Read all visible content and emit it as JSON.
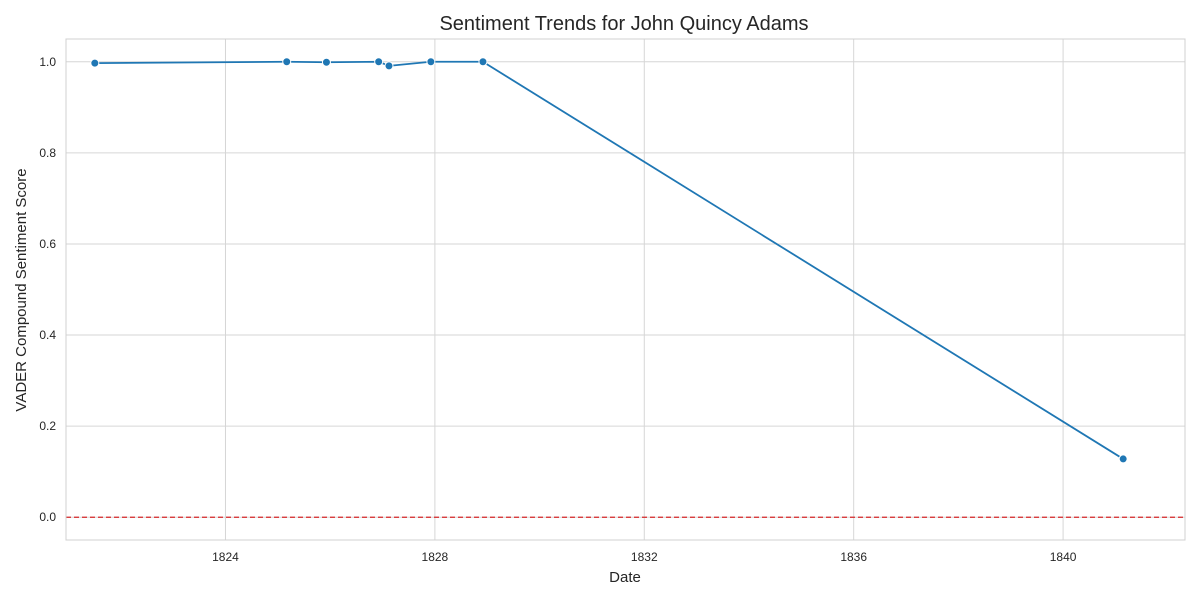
{
  "chart_data": {
    "type": "line",
    "title": "Sentiment Trends for John Quincy Adams",
    "xlabel": "Date",
    "ylabel": "VADER Compound Sentiment Score",
    "x_ticks": [
      "1824",
      "1828",
      "1832",
      "1836",
      "1840"
    ],
    "y_ticks": [
      "0.0",
      "0.2",
      "0.4",
      "0.6",
      "0.8",
      "1.0"
    ],
    "xlim": [
      "1820-12-15",
      "1842-05-01"
    ],
    "ylim": [
      -0.05,
      1.05
    ],
    "grid": true,
    "series": [
      {
        "color": "#1f77b4",
        "points": [
          {
            "x": "1821-07-04",
            "y": 0.997
          },
          {
            "x": "1825-03-04",
            "y": 1.0
          },
          {
            "x": "1825-12-06",
            "y": 0.999
          },
          {
            "x": "1826-12-05",
            "y": 1.0
          },
          {
            "x": "1827-02-15",
            "y": 0.991
          },
          {
            "x": "1827-12-04",
            "y": 1.0
          },
          {
            "x": "1828-12-02",
            "y": 1.0
          },
          {
            "x": "1841-02-24",
            "y": 0.128
          }
        ]
      }
    ],
    "reference_line": {
      "y": 0.0,
      "color": "#d62728",
      "style": "dashed"
    }
  }
}
